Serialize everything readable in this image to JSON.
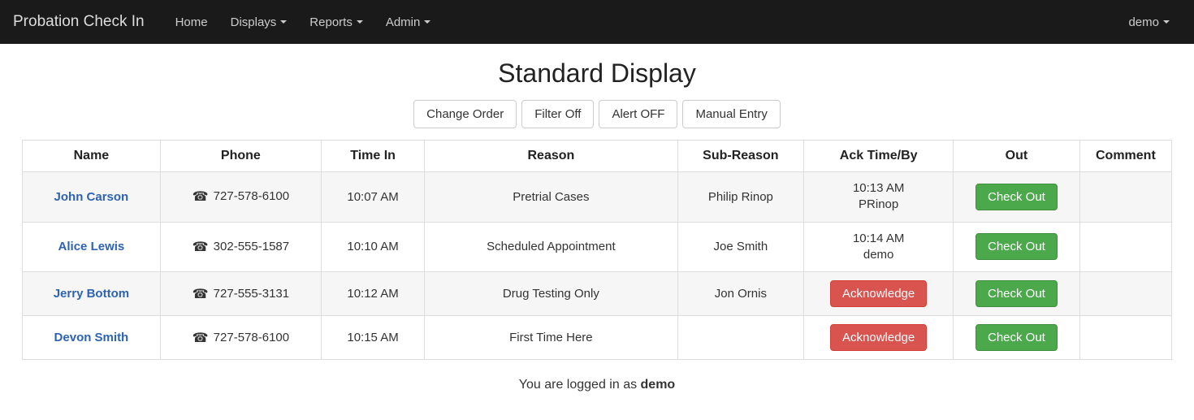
{
  "navbar": {
    "brand": "Probation Check In",
    "links": [
      {
        "label": "Home",
        "dropdown": false
      },
      {
        "label": "Displays",
        "dropdown": true
      },
      {
        "label": "Reports",
        "dropdown": true
      },
      {
        "label": "Admin",
        "dropdown": true
      }
    ],
    "user": "demo"
  },
  "page": {
    "title": "Standard Display"
  },
  "toolbar": {
    "buttons": [
      "Change Order",
      "Filter Off",
      "Alert OFF",
      "Manual Entry"
    ]
  },
  "table": {
    "columns": [
      "Name",
      "Phone",
      "Time In",
      "Reason",
      "Sub-Reason",
      "Ack Time/By",
      "Out",
      "Comment"
    ],
    "rows": [
      {
        "name": "John Carson",
        "phone": "727-578-6100",
        "time_in": "10:07 AM",
        "reason": "Pretrial Cases",
        "sub_reason": "Philip Rinop",
        "ack": "10:13 AM\nPRinop",
        "ack_kind": "text",
        "out_label": "Check Out",
        "comment": ""
      },
      {
        "name": "Alice Lewis",
        "phone": "302-555-1587",
        "time_in": "10:10 AM",
        "reason": "Scheduled Appointment",
        "sub_reason": "Joe Smith",
        "ack": "10:14 AM\ndemo",
        "ack_kind": "text",
        "out_label": "Check Out",
        "comment": ""
      },
      {
        "name": "Jerry Bottom",
        "phone": "727-555-3131",
        "time_in": "10:12 AM",
        "reason": "Drug Testing Only",
        "sub_reason": "Jon Ornis",
        "ack": "Acknowledge",
        "ack_kind": "button",
        "out_label": "Check Out",
        "comment": ""
      },
      {
        "name": "Devon Smith",
        "phone": "727-578-6100",
        "time_in": "10:15 AM",
        "reason": "First Time Here",
        "sub_reason": "",
        "ack": "Acknowledge",
        "ack_kind": "button",
        "out_label": "Check Out",
        "comment": ""
      }
    ]
  },
  "footer": {
    "prefix": "You are logged in as ",
    "user": "demo"
  },
  "colors": {
    "navbar_bg": "#1a1a1a",
    "link_blue": "#2d63b0",
    "btn_success": "#4ba84b",
    "btn_danger": "#d9534f",
    "border": "#dddddd",
    "row_alt": "#f6f6f6"
  }
}
